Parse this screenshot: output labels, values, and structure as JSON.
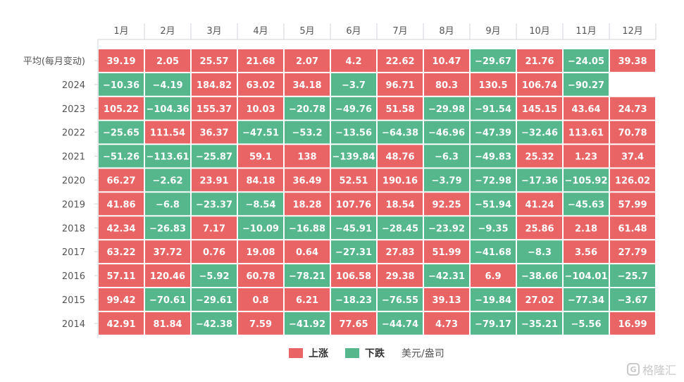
{
  "chart_data": {
    "type": "heatmap",
    "columns": [
      "1月",
      "2月",
      "3月",
      "4月",
      "5月",
      "6月",
      "7月",
      "8月",
      "9月",
      "10月",
      "11月",
      "12月"
    ],
    "rows": [
      {
        "label": "平均(每月变动)",
        "values": [
          39.19,
          2.05,
          25.57,
          21.68,
          2.07,
          4.2,
          22.62,
          10.47,
          -29.67,
          21.76,
          -24.05,
          39.38
        ]
      },
      {
        "label": "2024",
        "values": [
          -10.36,
          -4.19,
          184.82,
          63.02,
          34.18,
          -3.7,
          96.71,
          80.3,
          130.5,
          106.74,
          -90.27,
          null
        ]
      },
      {
        "label": "2023",
        "values": [
          105.22,
          -104.36,
          155.37,
          10.03,
          -20.78,
          -49.76,
          51.58,
          -29.98,
          -91.54,
          145.15,
          43.64,
          24.73
        ]
      },
      {
        "label": "2022",
        "values": [
          -25.65,
          111.54,
          36.37,
          -47.51,
          -53.2,
          -13.56,
          -64.38,
          -46.96,
          -47.39,
          -32.46,
          113.61,
          70.78
        ]
      },
      {
        "label": "2021",
        "values": [
          -51.26,
          -113.61,
          -25.87,
          59.1,
          138,
          -139.84,
          48.76,
          -6.3,
          -49.83,
          25.32,
          1.23,
          37.4
        ]
      },
      {
        "label": "2020",
        "values": [
          66.27,
          -2.62,
          23.91,
          84.18,
          36.49,
          52.51,
          190.16,
          -3.79,
          -72.98,
          -17.36,
          -105.92,
          126.02
        ]
      },
      {
        "label": "2019",
        "values": [
          41.86,
          -6.8,
          -23.37,
          -8.54,
          18.28,
          107.76,
          18.54,
          92.25,
          -51.94,
          41.24,
          -45.63,
          57.99
        ]
      },
      {
        "label": "2018",
        "values": [
          42.34,
          -26.83,
          7.17,
          -10.09,
          -16.88,
          -45.91,
          -28.45,
          -23.92,
          -9.35,
          25.86,
          2.18,
          61.48
        ]
      },
      {
        "label": "2017",
        "values": [
          63.22,
          37.72,
          0.76,
          19.08,
          0.64,
          -27.31,
          27.83,
          51.99,
          -41.68,
          -8.3,
          3.56,
          27.79
        ]
      },
      {
        "label": "2016",
        "values": [
          57.11,
          120.46,
          -5.92,
          60.78,
          -78.21,
          106.58,
          29.38,
          -42.31,
          6.9,
          -38.66,
          -104.01,
          -25.7
        ]
      },
      {
        "label": "2015",
        "values": [
          99.42,
          -70.61,
          -29.61,
          0.8,
          6.21,
          -18.23,
          -76.55,
          39.13,
          -19.84,
          27.02,
          -77.34,
          -3.67
        ]
      },
      {
        "label": "2014",
        "values": [
          42.91,
          81.84,
          -42.38,
          7.59,
          -41.92,
          77.65,
          -44.74,
          4.73,
          -79.17,
          -35.21,
          -5.56,
          16.99
        ]
      }
    ],
    "legend": [
      {
        "label": "上涨",
        "color": "#e96464"
      },
      {
        "label": "下跌",
        "color": "#55b78b"
      }
    ],
    "unit": "美元/盎司",
    "colors": {
      "up": "#e96464",
      "down": "#55b78b"
    },
    "legend_position": "bottom-center"
  },
  "watermark": {
    "logo_char": "G",
    "text": "格隆汇"
  }
}
